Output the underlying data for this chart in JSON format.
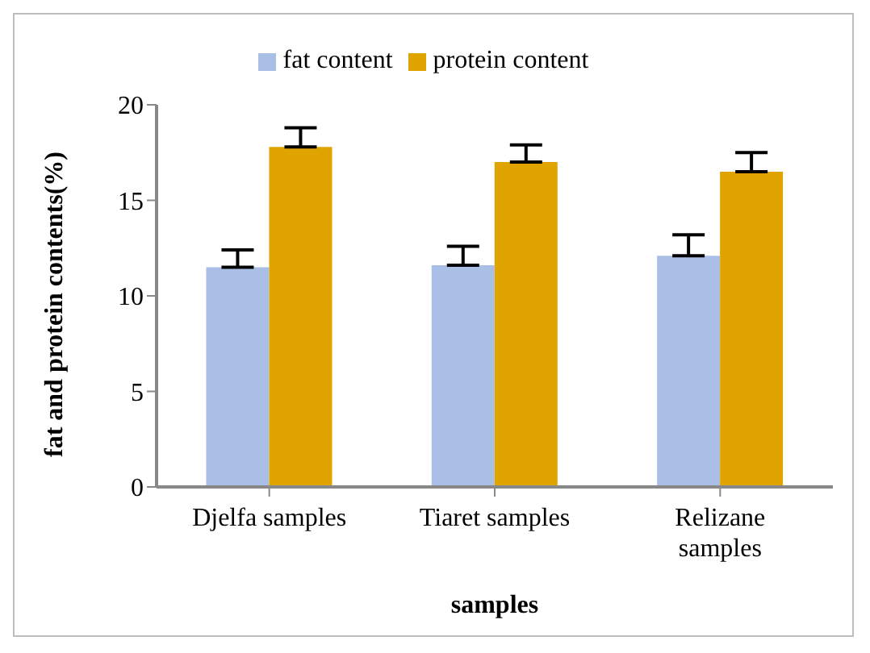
{
  "chart_data": {
    "type": "bar",
    "xlabel": "samples",
    "ylabel": "fat and protein contents(%)",
    "categories": [
      "Djelfa samples",
      "Tiaret samples",
      "Relizane samples"
    ],
    "series": [
      {
        "name": "fat content",
        "color": "#aabfe6",
        "values": [
          11.5,
          11.6,
          12.1
        ],
        "errors": [
          [
            11.5,
            12.4
          ],
          [
            11.6,
            12.6
          ],
          [
            12.1,
            13.2
          ]
        ]
      },
      {
        "name": "protein content",
        "color": "#e0a400",
        "values": [
          17.8,
          17.0,
          16.5
        ],
        "errors": [
          [
            17.8,
            18.8
          ],
          [
            17.0,
            17.9
          ],
          [
            16.5,
            17.5
          ]
        ]
      }
    ],
    "ylim": [
      0,
      20
    ],
    "yticks": [
      0,
      5,
      10,
      15,
      20
    ],
    "legend": "top"
  }
}
